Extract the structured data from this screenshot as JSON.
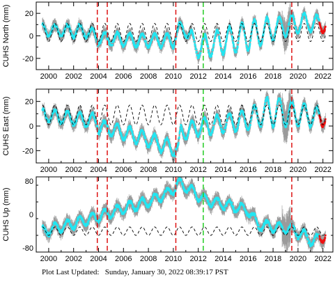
{
  "footer": {
    "label": "Plot Last Updated:",
    "timestamp": "Sunday, January 30, 2022 08:39:17 PST"
  },
  "colors": {
    "data": "#22e6f2",
    "error_bars": "#9a9a9a",
    "model": "#000000",
    "red_line": "#dd1111",
    "green_line": "#22cc22",
    "recent": "#ee1111"
  },
  "chart_data": [
    {
      "type": "scatter",
      "ylabel": "CUHS North (mm)",
      "xlim": [
        1999.0,
        2022.8
      ],
      "ylim": [
        -30,
        30
      ],
      "yticks": [
        -20,
        0,
        20
      ],
      "xticks": [
        2000,
        2002,
        2004,
        2006,
        2008,
        2010,
        2012,
        2014,
        2016,
        2018,
        2020,
        2022
      ],
      "xticklabels": [
        "2000",
        "2002",
        "2004",
        "2006",
        "2008",
        "2010",
        "2012",
        "2014",
        "2016",
        "2018",
        "2020",
        "2022"
      ],
      "red_dashed_lines": [
        2003.9,
        2004.7,
        2010.2,
        2019.5
      ],
      "green_dashed_lines": [
        2012.4
      ],
      "trend_knots": [
        [
          1999.5,
          5
        ],
        [
          2003.0,
          4
        ],
        [
          2004.0,
          -2
        ],
        [
          2007.0,
          -4
        ],
        [
          2010.0,
          -4
        ],
        [
          2010.5,
          5
        ],
        [
          2011.0,
          8
        ],
        [
          2011.6,
          -8
        ],
        [
          2012.2,
          -10
        ],
        [
          2014.0,
          -5
        ],
        [
          2016.0,
          0
        ],
        [
          2018.0,
          6
        ],
        [
          2019.5,
          10
        ],
        [
          2020.5,
          12
        ],
        [
          2022.2,
          10
        ]
      ],
      "seasonal_amplitude": [
        [
          1999.5,
          5
        ],
        [
          2010.0,
          6
        ],
        [
          2011.5,
          9
        ],
        [
          2016.0,
          13
        ],
        [
          2019.0,
          9
        ],
        [
          2022.2,
          7
        ]
      ],
      "model_curve": {
        "mean": 3,
        "amplitude": 8,
        "start": 1999.5,
        "end": 2022.2
      }
    },
    {
      "type": "scatter",
      "ylabel": "CUHS East (mm)",
      "xlim": [
        1999.0,
        2022.8
      ],
      "ylim": [
        -30,
        30
      ],
      "yticks": [
        -20,
        0,
        20
      ],
      "xticks": [
        2000,
        2002,
        2004,
        2006,
        2008,
        2010,
        2012,
        2014,
        2016,
        2018,
        2020,
        2022
      ],
      "xticklabels": [
        "2000",
        "2002",
        "2004",
        "2006",
        "2008",
        "2010",
        "2012",
        "2014",
        "2016",
        "2018",
        "2020",
        "2022"
      ],
      "red_dashed_lines": [
        2003.9,
        2004.7,
        2010.2,
        2019.5
      ],
      "green_dashed_lines": [
        2012.4
      ],
      "trend_knots": [
        [
          1999.5,
          9
        ],
        [
          2003.9,
          4
        ],
        [
          2004.0,
          0
        ],
        [
          2007.0,
          -8
        ],
        [
          2010.0,
          -18
        ],
        [
          2010.4,
          -20
        ],
        [
          2010.6,
          -5
        ],
        [
          2012.5,
          0
        ],
        [
          2016.0,
          5
        ],
        [
          2017.5,
          12
        ],
        [
          2019.5,
          10
        ],
        [
          2022.2,
          7
        ]
      ],
      "seasonal_amplitude": [
        [
          1999.5,
          5
        ],
        [
          2010.0,
          6
        ],
        [
          2016.0,
          8
        ],
        [
          2018.0,
          12
        ],
        [
          2022.2,
          7
        ]
      ],
      "model_curve": {
        "mean": 9,
        "amplitude": 8,
        "start": 1999.5,
        "end": 2022.2
      }
    },
    {
      "type": "scatter",
      "ylabel": "CUHS Up (mm)",
      "xlim": [
        1999.0,
        2022.8
      ],
      "ylim": [
        -90,
        90
      ],
      "yticks": [
        -80,
        0,
        80
      ],
      "xticks": [
        2000,
        2002,
        2004,
        2006,
        2008,
        2010,
        2012,
        2014,
        2016,
        2018,
        2020,
        2022
      ],
      "xticklabels": [
        "2000",
        "2002",
        "2004",
        "2006",
        "2008",
        "2010",
        "2012",
        "2014",
        "2016",
        "2018",
        "2020",
        "2022"
      ],
      "red_dashed_lines": [
        2003.9,
        2004.7,
        2010.2,
        2019.5
      ],
      "green_dashed_lines": [
        2012.4
      ],
      "trend_knots": [
        [
          1999.5,
          -40
        ],
        [
          2001.0,
          -30
        ],
        [
          2004.0,
          -5
        ],
        [
          2006.0,
          15
        ],
        [
          2008.0,
          30
        ],
        [
          2009.5,
          50
        ],
        [
          2010.5,
          75
        ],
        [
          2011.3,
          60
        ],
        [
          2012.5,
          35
        ],
        [
          2014.0,
          25
        ],
        [
          2016.0,
          10
        ],
        [
          2016.8,
          -25
        ],
        [
          2019.5,
          -35
        ],
        [
          2020.5,
          -50
        ],
        [
          2021.2,
          -65
        ],
        [
          2022.2,
          -50
        ]
      ],
      "seasonal_amplitude": [
        [
          1999.5,
          12
        ],
        [
          2022.2,
          12
        ]
      ],
      "model_curve": {
        "mean": -40,
        "amplitude": 10,
        "start": 1999.5,
        "end": 2022.2
      }
    }
  ]
}
